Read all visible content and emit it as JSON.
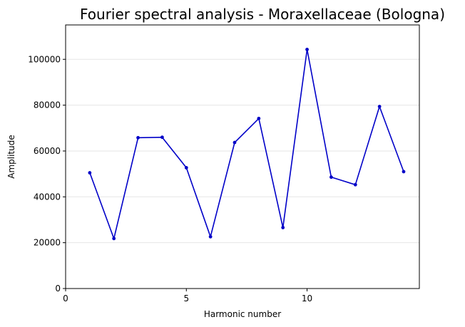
{
  "chart_data": {
    "type": "line",
    "title": "Fourier spectral analysis - Moraxellaceae (Bologna)",
    "xlabel": "Harmonic number",
    "ylabel": "Amplitude",
    "xlim": [
      0,
      14.65
    ],
    "ylim": [
      0,
      115000
    ],
    "xticks": [
      0,
      5,
      10
    ],
    "yticks": [
      0,
      20000,
      40000,
      60000,
      80000,
      100000
    ],
    "grid": {
      "y": true,
      "x": false
    },
    "series": [
      {
        "color": "#0000c8",
        "x": [
          1,
          2,
          3,
          4,
          5,
          6,
          7,
          8,
          9,
          10,
          11,
          12,
          13,
          14
        ],
        "values": [
          50500,
          21800,
          65800,
          66000,
          52700,
          22600,
          63700,
          74200,
          26600,
          104300,
          48600,
          45300,
          79400,
          51000
        ]
      }
    ]
  }
}
